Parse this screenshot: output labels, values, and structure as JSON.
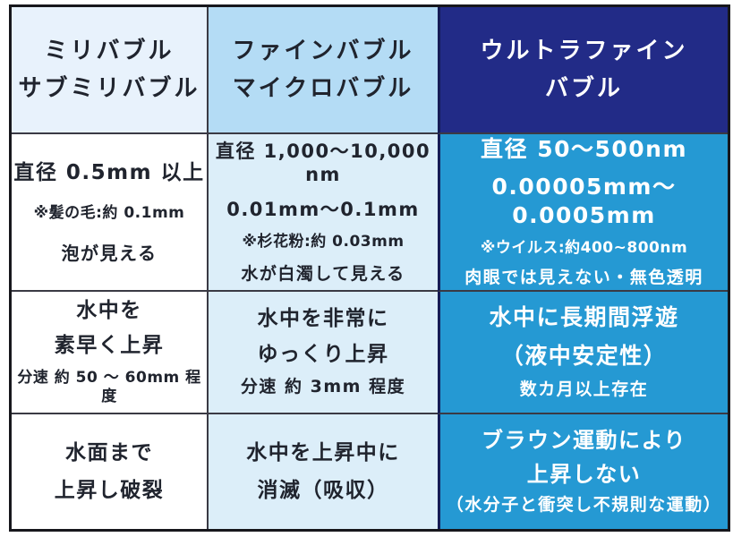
{
  "colors": {
    "outer_border": "#17171c",
    "grid_line": "#3a3a44",
    "header_col1_bg": "#e8f2fc",
    "header_col2_bg": "#b4dcf5",
    "header_col3_bg": "#222b87",
    "body_col1_bg": "#ffffff",
    "body_col2_bg": "#dceef9",
    "body_col3_bg": "#2599d3",
    "dark_text": "#20242e",
    "highlight_text": "#ffffff"
  },
  "table": {
    "headers": [
      {
        "lines": [
          "ミリバブル",
          "サブミリバブル"
        ]
      },
      {
        "lines": [
          "ファインバブル",
          "マイクロバブル"
        ]
      },
      {
        "lines": [
          "ウルトラファイン",
          "バブル"
        ]
      }
    ],
    "rows": [
      {
        "cells": [
          {
            "lines": [
              "直径 0.5mm 以上",
              "※髪の毛:約 0.1mm",
              "泡が見える"
            ]
          },
          {
            "lines": [
              "直径 1,000～10,000 nm",
              "0.01mm～0.1mm",
              "※杉花粉:約 0.03mm",
              "水が白濁して見える"
            ]
          },
          {
            "lines": [
              "直径 50～500nm",
              "0.00005mm～0.0005mm",
              "※ウイルス:約400~800nm",
              "肉眼では見えない・無色透明"
            ]
          }
        ]
      },
      {
        "cells": [
          {
            "lines": [
              "水中を",
              "素早く上昇",
              "分速 約 50 ～ 60mm 程度"
            ]
          },
          {
            "lines": [
              "水中を非常に",
              "ゆっくり上昇",
              "分速 約 3mm 程度"
            ]
          },
          {
            "lines": [
              "水中に長期間浮遊",
              "（液中安定性）",
              "数カ月以上存在"
            ]
          }
        ]
      },
      {
        "cells": [
          {
            "lines": [
              "水面まで",
              "上昇し破裂"
            ]
          },
          {
            "lines": [
              "水中を上昇中に",
              "消滅（吸収）"
            ]
          },
          {
            "lines": [
              "ブラウン運動により",
              "上昇しない",
              "（水分子と衝突し不規則な運動）"
            ]
          }
        ]
      }
    ]
  }
}
